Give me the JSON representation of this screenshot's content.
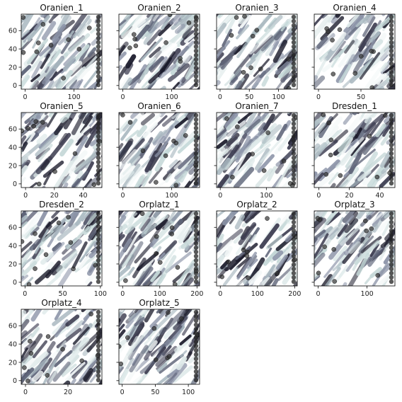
{
  "chart_data": [
    {
      "type": "scatter",
      "title": "Oranien_1",
      "xticks": [
        0,
        100
      ],
      "yticks": [
        0,
        20,
        40,
        60
      ],
      "xlim": [
        -8,
        157
      ],
      "ylim": [
        78,
        -4
      ],
      "shared_y_labels": true
    },
    {
      "type": "scatter",
      "title": "Oranien_2",
      "xticks": [
        0,
        100
      ],
      "yticks": [
        0,
        20,
        40,
        60
      ],
      "xlim": [
        -8,
        157
      ],
      "ylim": [
        78,
        -4
      ],
      "shared_y_labels": false
    },
    {
      "type": "scatter",
      "title": "Oranien_3",
      "xticks": [
        0,
        50,
        100
      ],
      "yticks": [
        0,
        20,
        40,
        60
      ],
      "xlim": [
        -6,
        132
      ],
      "ylim": [
        78,
        -4
      ],
      "shared_y_labels": false
    },
    {
      "type": "scatter",
      "title": "Oranien_4",
      "xticks": [
        0,
        50
      ],
      "yticks": [
        0,
        20,
        40,
        60
      ],
      "xlim": [
        -5,
        90
      ],
      "ylim": [
        78,
        -4
      ],
      "shared_y_labels": false
    },
    {
      "type": "scatter",
      "title": "Oranien_5",
      "xticks": [
        0,
        20,
        40
      ],
      "yticks": [
        0,
        20,
        40,
        60
      ],
      "xlim": [
        -3,
        53
      ],
      "ylim": [
        78,
        -4
      ],
      "shared_y_labels": true
    },
    {
      "type": "scatter",
      "title": "Oranien_6",
      "xticks": [
        0,
        100
      ],
      "yticks": [
        0,
        20,
        40,
        60
      ],
      "xlim": [
        -8,
        157
      ],
      "ylim": [
        78,
        -4
      ],
      "shared_y_labels": false
    },
    {
      "type": "scatter",
      "title": "Oranien_7",
      "xticks": [
        0,
        100
      ],
      "yticks": [
        0,
        20,
        40,
        60
      ],
      "xlim": [
        -8,
        167
      ],
      "ylim": [
        78,
        -4
      ],
      "shared_y_labels": false
    },
    {
      "type": "scatter",
      "title": "Dresden_1",
      "xticks": [
        0,
        20,
        40
      ],
      "yticks": [
        0,
        20,
        40,
        60
      ],
      "xlim": [
        -3,
        50
      ],
      "ylim": [
        78,
        -4
      ],
      "shared_y_labels": false
    },
    {
      "type": "scatter",
      "title": "Dresden_2",
      "xticks": [
        0,
        50,
        100
      ],
      "yticks": [
        0,
        20,
        40,
        60
      ],
      "xlim": [
        -5,
        102
      ],
      "ylim": [
        78,
        -4
      ],
      "shared_y_labels": true
    },
    {
      "type": "scatter",
      "title": "Orplatz_1",
      "xticks": [
        0,
        100,
        200
      ],
      "yticks": [
        0,
        20,
        40,
        60
      ],
      "xlim": [
        -10,
        207
      ],
      "ylim": [
        78,
        -4
      ],
      "shared_y_labels": false
    },
    {
      "type": "scatter",
      "title": "Orplatz_2",
      "xticks": [
        0,
        100,
        200
      ],
      "yticks": [
        0,
        20,
        40,
        60
      ],
      "xlim": [
        -10,
        207
      ],
      "ylim": [
        78,
        -4
      ],
      "shared_y_labels": false
    },
    {
      "type": "scatter",
      "title": "Orplatz_3",
      "xticks": [
        0,
        100
      ],
      "yticks": [
        0,
        20,
        40,
        60
      ],
      "xlim": [
        -8,
        157
      ],
      "ylim": [
        78,
        -4
      ],
      "shared_y_labels": false
    },
    {
      "type": "scatter",
      "title": "Orplatz_4",
      "xticks": [
        0,
        20
      ],
      "yticks": [
        0,
        20,
        40,
        60
      ],
      "xlim": [
        -2,
        36
      ],
      "ylim": [
        78,
        -4
      ],
      "shared_y_labels": true
    },
    {
      "type": "scatter",
      "title": "Orplatz_5",
      "xticks": [
        0,
        50,
        100
      ],
      "yticks": [
        0,
        20,
        40,
        60
      ],
      "xlim": [
        -5,
        117
      ],
      "ylim": [
        78,
        -4
      ],
      "shared_y_labels": false
    }
  ],
  "colors": {
    "light": "#c5d8d8",
    "mid": "#8c94a8",
    "dark": "#1c1c2c",
    "point": "#333333"
  }
}
